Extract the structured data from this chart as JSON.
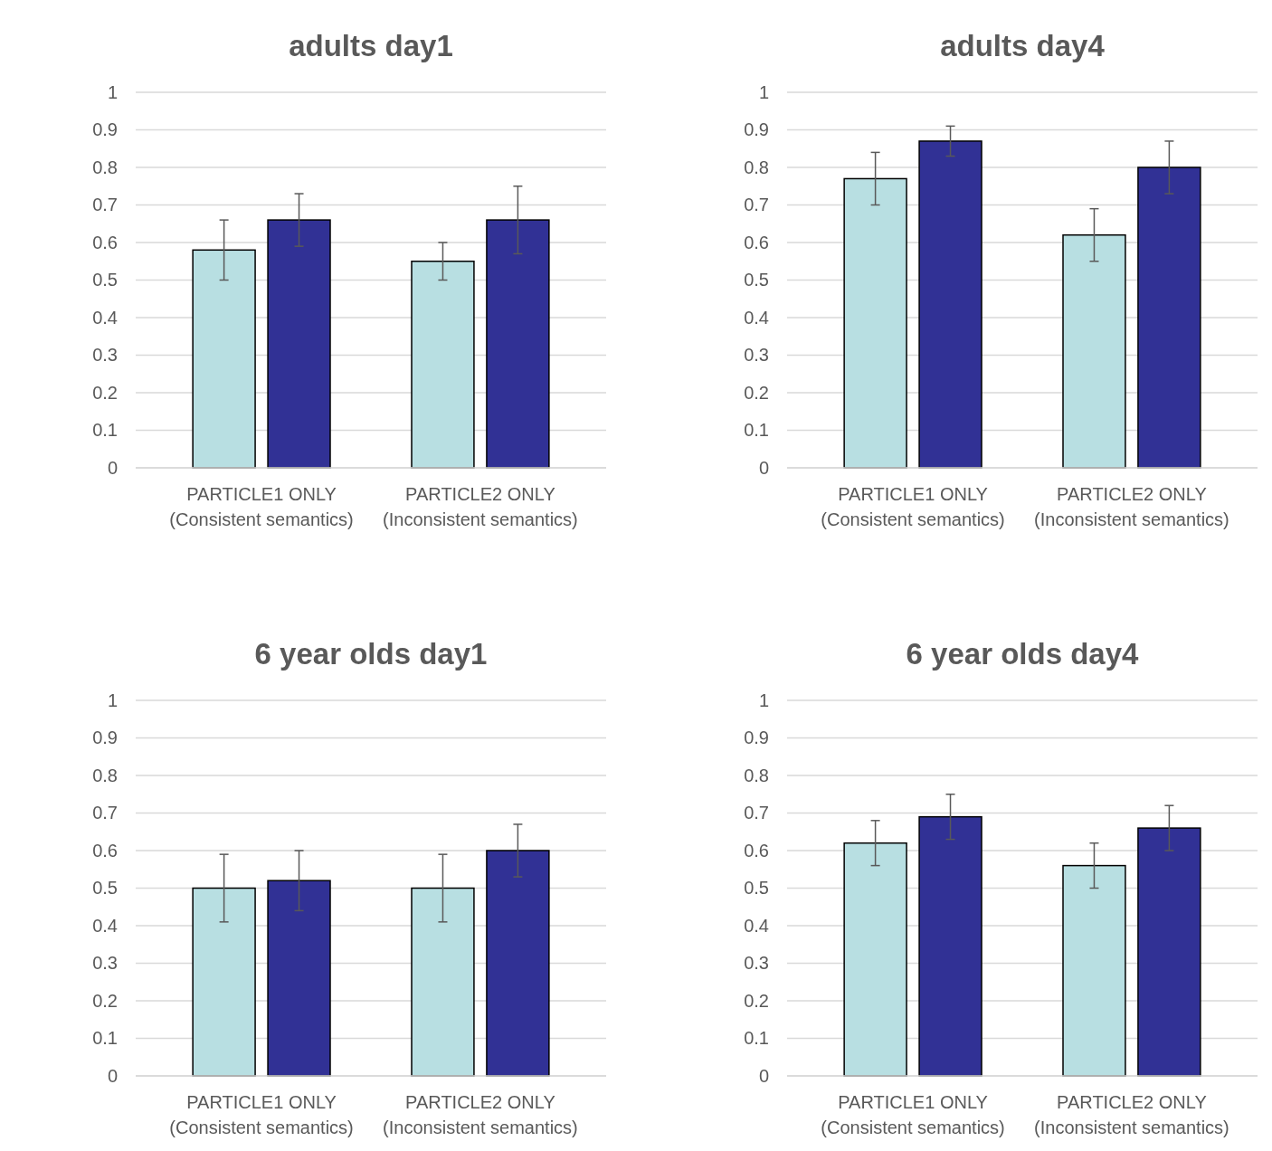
{
  "chart_data": [
    {
      "type": "bar",
      "title": "adults day1",
      "categories": [
        "PARTICLE1 ONLY\n(Consistent semantics)",
        "PARTICLE2 ONLY\n(Inconsistent semantics)"
      ],
      "series": [
        {
          "color": "#b8dfe2",
          "values": [
            0.58,
            0.55
          ],
          "errors": [
            0.08,
            0.05
          ]
        },
        {
          "color": "#313195",
          "values": [
            0.66,
            0.66
          ],
          "errors": [
            0.07,
            0.09
          ]
        }
      ],
      "ylim": [
        0,
        1
      ],
      "yticks": [
        0,
        0.1,
        0.2,
        0.3,
        0.4,
        0.5,
        0.6,
        0.7,
        0.8,
        0.9,
        1
      ],
      "grid": "y"
    },
    {
      "type": "bar",
      "title": "adults day4",
      "categories": [
        "PARTICLE1 ONLY\n(Consistent semantics)",
        "PARTICLE2 ONLY\n(Inconsistent semantics)"
      ],
      "series": [
        {
          "color": "#b8dfe2",
          "values": [
            0.77,
            0.62
          ],
          "errors": [
            0.07,
            0.07
          ]
        },
        {
          "color": "#313195",
          "values": [
            0.87,
            0.8
          ],
          "errors": [
            0.04,
            0.07
          ]
        }
      ],
      "ylim": [
        0,
        1
      ],
      "yticks": [
        0,
        0.1,
        0.2,
        0.3,
        0.4,
        0.5,
        0.6,
        0.7,
        0.8,
        0.9,
        1
      ],
      "grid": "y"
    },
    {
      "type": "bar",
      "title": "6 year olds day1",
      "categories": [
        "PARTICLE1 ONLY\n(Consistent semantics)",
        "PARTICLE2 ONLY\n(Inconsistent semantics)"
      ],
      "series": [
        {
          "color": "#b8dfe2",
          "values": [
            0.5,
            0.5
          ],
          "errors": [
            0.09,
            0.09
          ]
        },
        {
          "color": "#313195",
          "values": [
            0.52,
            0.6
          ],
          "errors": [
            0.08,
            0.07
          ]
        }
      ],
      "ylim": [
        0,
        1
      ],
      "yticks": [
        0,
        0.1,
        0.2,
        0.3,
        0.4,
        0.5,
        0.6,
        0.7,
        0.8,
        0.9,
        1
      ],
      "grid": "y"
    },
    {
      "type": "bar",
      "title": "6 year olds day4",
      "categories": [
        "PARTICLE1 ONLY\n(Consistent semantics)",
        "PARTICLE2 ONLY\n(Inconsistent semantics)"
      ],
      "series": [
        {
          "color": "#b8dfe2",
          "values": [
            0.62,
            0.56
          ],
          "errors": [
            0.06,
            0.06
          ]
        },
        {
          "color": "#313195",
          "values": [
            0.69,
            0.66
          ],
          "errors": [
            0.06,
            0.06
          ]
        }
      ],
      "ylim": [
        0,
        1
      ],
      "yticks": [
        0,
        0.1,
        0.2,
        0.3,
        0.4,
        0.5,
        0.6,
        0.7,
        0.8,
        0.9,
        1
      ],
      "grid": "y"
    }
  ]
}
